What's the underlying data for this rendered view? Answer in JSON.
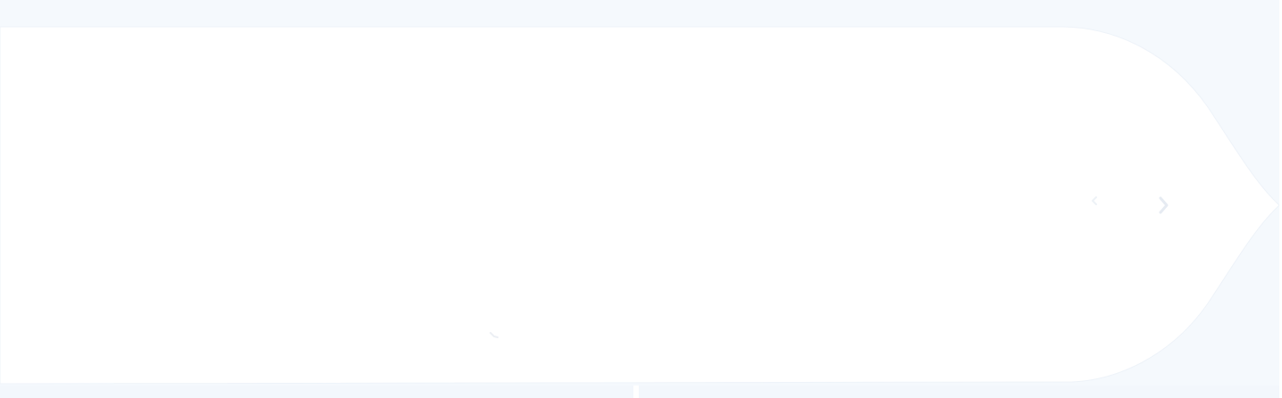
{
  "colors": {
    "page_background": "#f5f9fd",
    "panel_fill": "#ffffff",
    "panel_edge": "#eef3f9",
    "icon_color": "#e9eef5"
  },
  "carousel": {
    "prev_icon": "chevron-left-icon",
    "next_icon": "chevron-right-icon",
    "indicator_icon": "slide-indicator-icon"
  }
}
